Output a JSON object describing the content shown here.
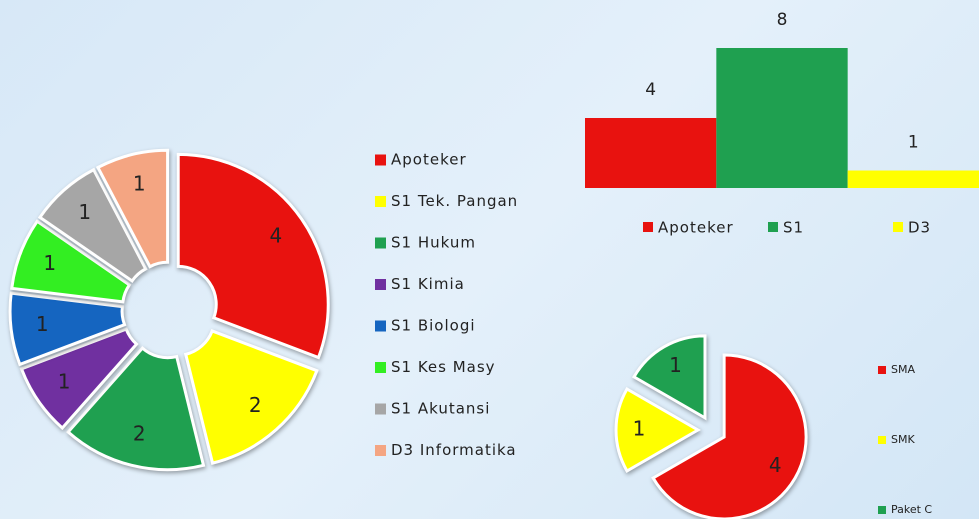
{
  "chart_data": [
    {
      "type": "pie",
      "categories": [
        "Apoteker",
        "S1 Tek. Pangan",
        "S1 Hukum",
        "S1 Kimia",
        "S1 Biologi",
        "S1 Kes Masy",
        "S1 Akutansi",
        "D3 Informatika"
      ],
      "values": [
        4,
        2,
        2,
        1,
        1,
        1,
        1,
        1
      ],
      "colors": [
        "#e8120f",
        "#ffff00",
        "#1fa050",
        "#7030a0",
        "#1565c0",
        "#33ee22",
        "#a6a6a6",
        "#f4a582"
      ]
    },
    {
      "type": "bar",
      "categories": [
        "Apoteker",
        "S1",
        "D3"
      ],
      "values": [
        4,
        8,
        1
      ],
      "colors": [
        "#e8120f",
        "#1fa050",
        "#ffff00"
      ],
      "ylim": [
        0,
        8
      ]
    },
    {
      "type": "pie",
      "categories": [
        "SMA",
        "SMK",
        "Paket C"
      ],
      "values": [
        4,
        1,
        1
      ],
      "colors": [
        "#e8120f",
        "#ffff00",
        "#1fa050"
      ]
    }
  ]
}
